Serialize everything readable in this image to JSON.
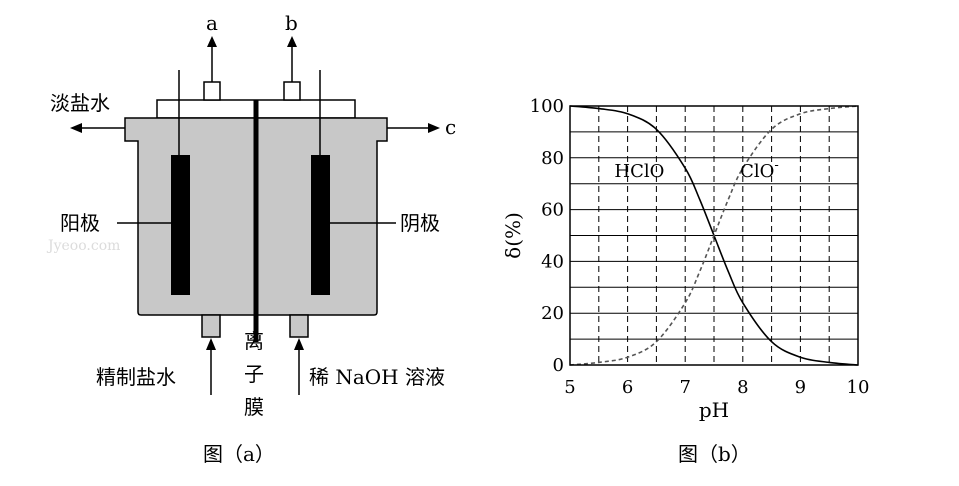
{
  "figure_a": {
    "caption": "图（a）",
    "outlet_a": "a",
    "outlet_b": "b",
    "outlet_c": "c",
    "dilute_brine_out": "淡盐水",
    "anode": "阳极",
    "cathode": "阴极",
    "membrane_chars": [
      "离",
      "子",
      "膜"
    ],
    "brine_in": "精制盐水",
    "naoh_in": "稀 NaOH 溶液",
    "watermark": "Jyeoo.com"
  },
  "figure_b": {
    "caption": "图（b）"
  },
  "chart_data": {
    "type": "line",
    "xlabel": "pH",
    "ylabel": "δ(%)",
    "xlim": [
      5,
      10
    ],
    "ylim": [
      0,
      100
    ],
    "x_ticks": [
      5,
      6,
      7,
      8,
      9,
      10
    ],
    "y_ticks": [
      0,
      20,
      40,
      60,
      80,
      100
    ],
    "grid": {
      "vertical_dashed_every": 0.5,
      "horizontal_solid": [
        10,
        20,
        30,
        40,
        50,
        60,
        70,
        80,
        90
      ]
    },
    "series": [
      {
        "name": "HClO",
        "style": "solid",
        "x": [
          5.0,
          5.5,
          6.0,
          6.5,
          7.0,
          7.25,
          7.5,
          7.75,
          8.0,
          8.5,
          9.0,
          9.5,
          10.0
        ],
        "y": [
          100,
          99,
          97,
          91,
          76,
          64,
          50,
          36,
          24,
          9,
          3,
          1,
          0
        ]
      },
      {
        "name": "ClO⁻",
        "style": "dashed",
        "x": [
          5.0,
          5.5,
          6.0,
          6.5,
          7.0,
          7.25,
          7.5,
          7.75,
          8.0,
          8.5,
          9.0,
          9.5,
          10.0
        ],
        "y": [
          0,
          1,
          3,
          9,
          24,
          36,
          50,
          64,
          76,
          91,
          97,
          99,
          100
        ]
      }
    ],
    "annotations": [
      {
        "text": "HClO",
        "x": 6.5,
        "y": 75
      },
      {
        "text": "ClO",
        "superscript": "-",
        "x": 8.3,
        "y": 75
      }
    ]
  }
}
